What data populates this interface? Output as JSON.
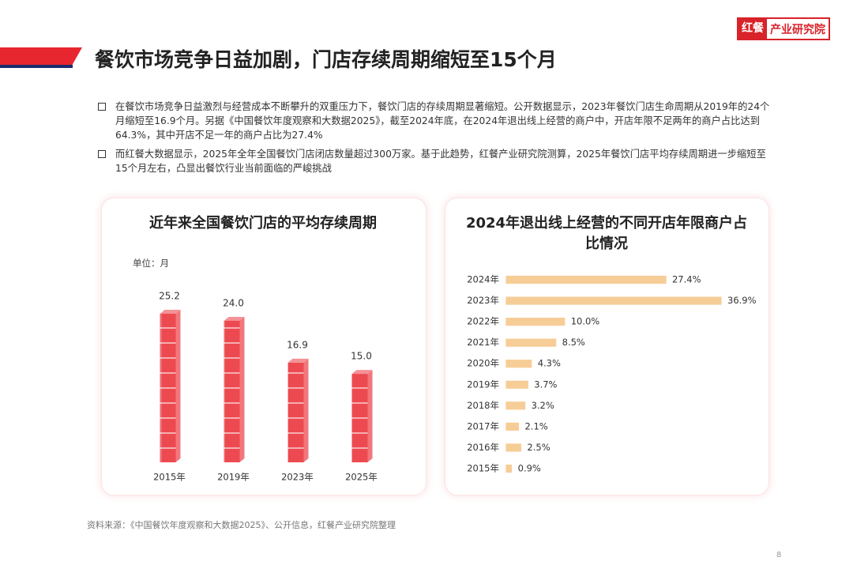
{
  "header": {
    "title": "餐饮市场竞争日益加剧，门店存续周期缩短至15个月",
    "logo": {
      "brand": "红餐",
      "name": "产业研究院"
    }
  },
  "bullets": [
    "在餐饮市场竞争日益激烈与经营成本不断攀升的双重压力下，餐饮门店的存续周期显著缩短。公开数据显示，2023年餐饮门店生命周期从2019年的24个月缩短至16.9个月。另据《中国餐饮年度观察和大数据2025》，截至2024年底，在2024年退出线上经营的商户中，开店年限不足两年的商户占比达到64.3%，其中开店不足一年的商户占比为27.4%",
    "而红餐大数据显示，2025年全年全国餐饮门店闭店数量超过300万家。基于此趋势，红餐产业研究院测算，2025年餐饮门店平均存续周期进一步缩短至15个月左右，凸显出餐饮行业当前面临的严峻挑战"
  ],
  "chart_data": [
    {
      "type": "bar",
      "title": "近年来全国餐饮门店的平均存续周期",
      "unit": "单位：月",
      "categories": [
        "2015年",
        "2019年",
        "2023年",
        "2025年"
      ],
      "values": [
        25.2,
        24.0,
        16.9,
        15.0
      ],
      "value_labels": [
        "25.2",
        "24.0",
        "16.9",
        "15.0"
      ],
      "color": "#ec4a50"
    },
    {
      "type": "hbar",
      "title": "2024年退出线上经营的不同开店年限商户占比情况",
      "categories": [
        "2024年",
        "2023年",
        "2022年",
        "2021年",
        "2020年",
        "2019年",
        "2018年",
        "2017年",
        "2016年",
        "2015年"
      ],
      "values": [
        27.4,
        36.9,
        10.0,
        8.5,
        4.3,
        3.7,
        3.2,
        2.1,
        2.5,
        0.9
      ],
      "value_labels": [
        "27.4%",
        "36.9%",
        "10.0%",
        "8.5%",
        "4.3%",
        "3.7%",
        "3.2%",
        "2.1%",
        "2.5%",
        "0.9%"
      ],
      "color": "#f2a543"
    }
  ],
  "source": "资料来源：《中国餐饮年度观察和大数据2025》、公开信息，红餐产业研究院整理",
  "page_number": 8
}
